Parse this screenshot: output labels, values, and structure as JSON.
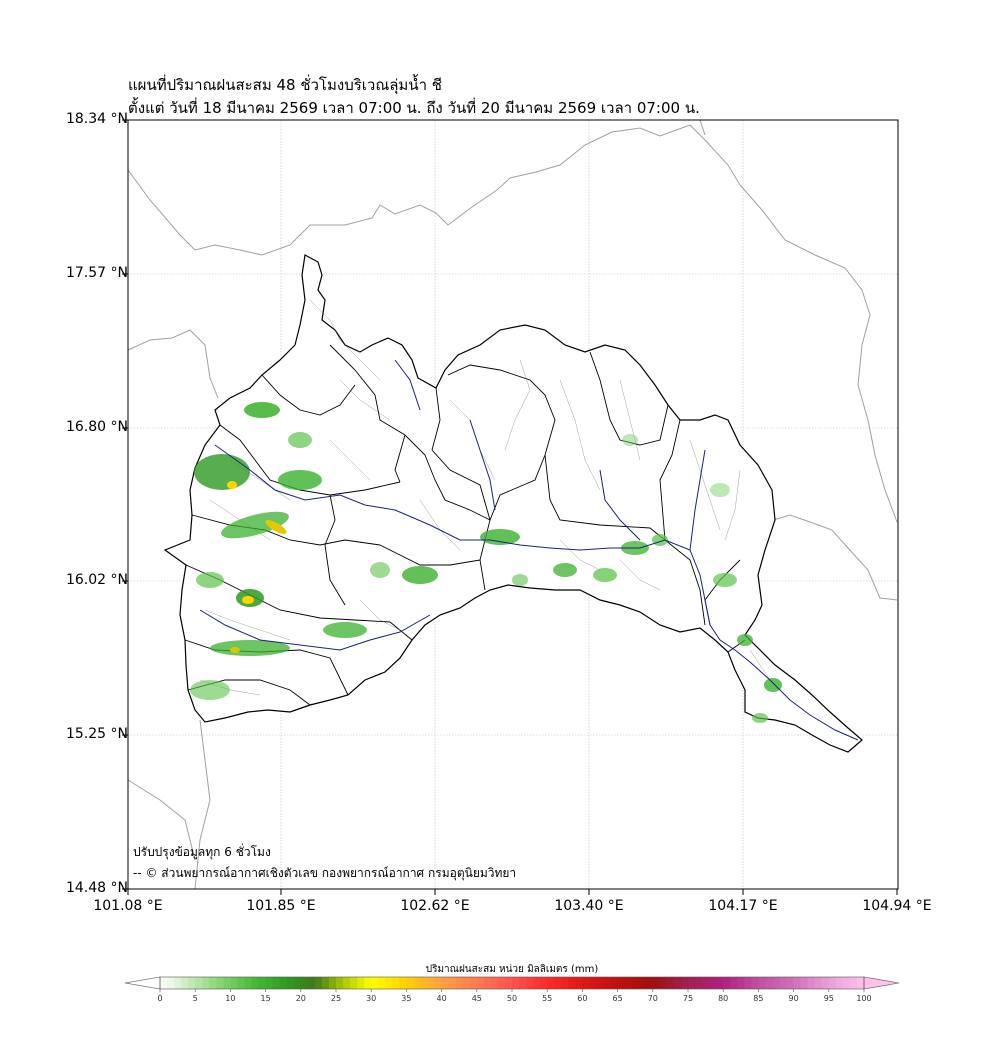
{
  "title_line1": "แผนที่ปริมาณฝนสะสม 48 ชั่วโมงบริเวณลุ่มน้ำ ชี",
  "title_line2": "ตั้งแต่ วันที่ 18 มีนาคม 2569 เวลา 07:00 น. ถึง วันที่ 20 มีนาคม 2569 เวลา 07:00 น.",
  "y_ticks": [
    "18.34 °N",
    "17.57 °N",
    "16.80 °N",
    "16.02 °N",
    "15.25 °N",
    "14.48 °N"
  ],
  "x_ticks": [
    "101.08 °E",
    "101.85 °E",
    "102.62 °E",
    "103.40 °E",
    "104.17 °E",
    "104.94 °E"
  ],
  "note_update": "ปรับปรุงข้อมูลทุก 6 ชั่วโมง",
  "note_credit": "-- © ส่วนพยากรณ์อากาศเชิงตัวเลข กองพยากรณ์อากาศ กรมอุตุนิยมวิทยา",
  "colorbar": {
    "title": "ปริมาณฝนสะสม หน่วย มิลลิเมตร (mm)",
    "ticks": [
      "0",
      "5",
      "10",
      "15",
      "20",
      "25",
      "30",
      "35",
      "40",
      "45",
      "50",
      "55",
      "60",
      "65",
      "70",
      "75",
      "80",
      "85",
      "90",
      "95",
      "100"
    ],
    "min": 0,
    "max": 100
  },
  "colors": {
    "basin_outline": "#000000",
    "rivers": "#1a237e",
    "borders": "#9e9e9e",
    "grid": "#cccccc",
    "rain_light": "#b7e4a8",
    "rain_mid": "#4cbb3c",
    "rain_heavy": "#2e8b1f",
    "rain_peak": "#ffd400"
  }
}
